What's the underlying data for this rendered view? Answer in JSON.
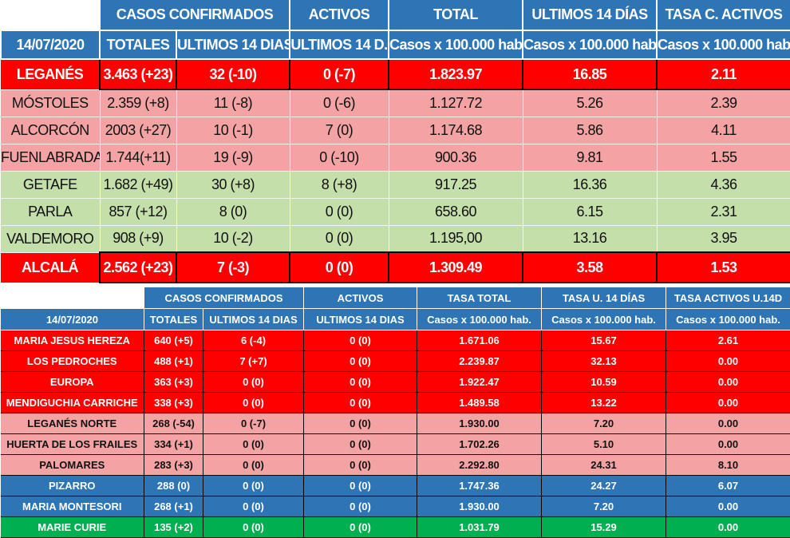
{
  "colors": {
    "header_blue": "#2e75b6",
    "red": "#ff0000",
    "pink": "#f3a3a3",
    "light_green": "#c5dfaa",
    "blue": "#2e75b6",
    "green": "#00b050"
  },
  "top": {
    "h1": {
      "casos": "CASOS CONFIRMADOS",
      "activos": "ACTIVOS",
      "total": "TOTAL",
      "ultimos": "ULTIMOS 14 DÍAS",
      "tasa": "TASA C. ACTIVOS"
    },
    "h2": {
      "date": "14/07/2020",
      "totales": "TOTALES",
      "ult14": "ULTIMOS 14 DIAS",
      "ult14d": "ULTIMOS 14 D.",
      "c1": "Casos x 100.000 hab.",
      "c2": "Casos x 100.000 hab.",
      "c3": "Casos x 100.000 hab."
    },
    "rows": [
      {
        "name": "LEGANÉS",
        "totales": "3.463 (+23)",
        "ult14": "32 (-10)",
        "activos": "0 (-7)",
        "total": "1.823.97",
        "ult": "16.85",
        "tasa": "2.11"
      },
      {
        "name": "MÓSTOLES",
        "totales": "2.359 (+8)",
        "ult14": "11 (-8)",
        "activos": "0 (-6)",
        "total": "1.127.72",
        "ult": "5.26",
        "tasa": "2.39"
      },
      {
        "name": "ALCORCÓN",
        "totales": "2003 (+27)",
        "ult14": "10 (-1)",
        "activos": "7 (0)",
        "total": "1.174.68",
        "ult": "5.86",
        "tasa": "4.11"
      },
      {
        "name": "FUENLABRADA",
        "totales": "1.744(+11)",
        "ult14": "19 (-9)",
        "activos": "0 (-10)",
        "total": "900.36",
        "ult": "9.81",
        "tasa": "1.55"
      },
      {
        "name": "GETAFE",
        "totales": "1.682 (+49)",
        "ult14": "30 (+8)",
        "activos": "8 (+8)",
        "total": "917.25",
        "ult": "16.36",
        "tasa": "4.36"
      },
      {
        "name": "PARLA",
        "totales": "857 (+12)",
        "ult14": "8 (0)",
        "activos": "0 (0)",
        "total": "658.60",
        "ult": "6.15",
        "tasa": "2.31"
      },
      {
        "name": "VALDEMORO",
        "totales": "908 (+9)",
        "ult14": "10 (-2)",
        "activos": "0 (0)",
        "total": "1.195,00",
        "ult": "13.16",
        "tasa": "3.95"
      },
      {
        "name": "ALCALÁ",
        "totales": "2.562 (+23)",
        "ult14": "7 (-3)",
        "activos": "0 (0)",
        "total": "1.309.49",
        "ult": "3.58",
        "tasa": "1.53"
      }
    ]
  },
  "bottom": {
    "h1": {
      "casos": "CASOS CONFIRMADOS",
      "activos": "ACTIVOS",
      "total": "TASA TOTAL",
      "ultimos": "TASA U. 14 DÍAS",
      "tasa": "TASA ACTIVOS U.14D"
    },
    "h2": {
      "date": "14/07/2020",
      "totales": "TOTALES",
      "ult14": "ULTIMOS 14 DIAS",
      "ult14d": "ULTIMOS 14 DIAS",
      "c1": "Casos x 100.000 hab.",
      "c2": "Casos x 100.000 hab.",
      "c3": "Casos x 100.000 hab."
    },
    "rows": [
      {
        "name": "MARIA JESUS HEREZA",
        "totales": "640 (+5)",
        "ult14": "6 (-4)",
        "activos": "0 (0)",
        "total": "1.671.06",
        "ult": "15.67",
        "tasa": "2.61"
      },
      {
        "name": "LOS PEDROCHES",
        "totales": "488 (+1)",
        "ult14": "7 (+7)",
        "activos": "0 (0)",
        "total": "2.239.87",
        "ult": "32.13",
        "tasa": "0.00"
      },
      {
        "name": "EUROPA",
        "totales": "363 (+3)",
        "ult14": "0 (0)",
        "activos": "0 (0)",
        "total": "1.922.47",
        "ult": "10.59",
        "tasa": "0.00"
      },
      {
        "name": "MENDIGUCHIA CARRICHE",
        "totales": "338 (+3)",
        "ult14": "0 (0)",
        "activos": "0 (0)",
        "total": "1.489.58",
        "ult": "13.22",
        "tasa": "0.00"
      },
      {
        "name": "LEGANÉS NORTE",
        "totales": "268  (-54)",
        "ult14": "0 (-7)",
        "activos": "0 (0)",
        "total": "1.930.00",
        "ult": "7.20",
        "tasa": "0.00"
      },
      {
        "name": "HUERTA DE LOS FRAILES",
        "totales": "334 (+1)",
        "ult14": "0 (0)",
        "activos": "0 (0)",
        "total": "1.702.26",
        "ult": "5.10",
        "tasa": "0.00"
      },
      {
        "name": "PALOMARES",
        "totales": "283 (+3)",
        "ult14": "0 (0)",
        "activos": "0 (0)",
        "total": "2.292.80",
        "ult": "24.31",
        "tasa": "8.10"
      },
      {
        "name": "PIZARRO",
        "totales": "288 (0)",
        "ult14": "0 (0)",
        "activos": "0 (0)",
        "total": "1.747.36",
        "ult": "24.27",
        "tasa": "6.07"
      },
      {
        "name": "MARIA MONTESORI",
        "totales": "268 (+1)",
        "ult14": "0 (0)",
        "activos": "0 (0)",
        "total": "1.930.00",
        "ult": "7.20",
        "tasa": "0.00"
      },
      {
        "name": "MARIE CURIE",
        "totales": "135 (+2)",
        "ult14": "0 (0)",
        "activos": "0 (0)",
        "total": "1.031.79",
        "ult": "15.29",
        "tasa": "0.00"
      }
    ]
  }
}
